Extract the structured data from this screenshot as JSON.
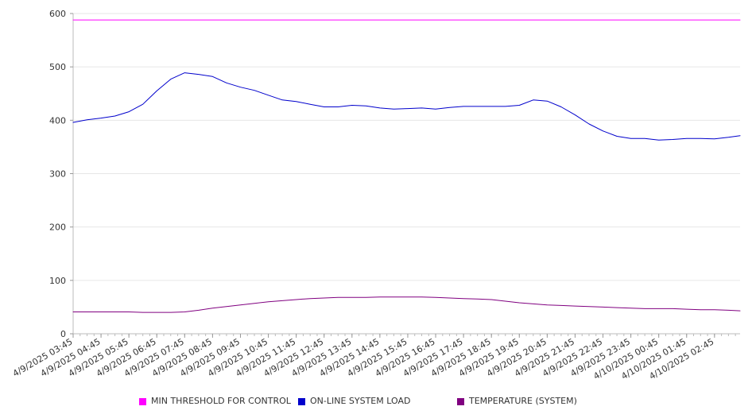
{
  "chart_data": {
    "type": "line",
    "title": "",
    "xlabel": "",
    "ylabel": "",
    "ylim": [
      0,
      600
    ],
    "y_ticks": [
      "0",
      "100",
      "200",
      "300",
      "400",
      "500",
      "600"
    ],
    "x_tick_labels": [
      "4/9/2025 03:45",
      "4/9/2025 04:45",
      "4/9/2025 05:45",
      "4/9/2025 06:45",
      "4/9/2025 07:45",
      "4/9/2025 08:45",
      "4/9/2025 09:45",
      "4/9/2025 10:45",
      "4/9/2025 11:45",
      "4/9/2025 12:45",
      "4/9/2025 13:45",
      "4/9/2025 14:45",
      "4/9/2025 15:45",
      "4/9/2025 16:45",
      "4/9/2025 17:45",
      "4/9/2025 18:45",
      "4/9/2025 19:45",
      "4/9/2025 20:45",
      "4/9/2025 21:45",
      "4/9/2025 22:45",
      "4/9/2025 23:45",
      "4/10/2025 00:45",
      "4/10/2025 01:45",
      "4/10/2025 02:45"
    ],
    "x": [
      "4/9/2025 03:45",
      "4/9/2025 04:15",
      "4/9/2025 04:45",
      "4/9/2025 05:15",
      "4/9/2025 05:45",
      "4/9/2025 06:15",
      "4/9/2025 06:45",
      "4/9/2025 07:15",
      "4/9/2025 07:45",
      "4/9/2025 08:15",
      "4/9/2025 08:45",
      "4/9/2025 09:15",
      "4/9/2025 09:45",
      "4/9/2025 10:15",
      "4/9/2025 10:45",
      "4/9/2025 11:15",
      "4/9/2025 11:45",
      "4/9/2025 12:15",
      "4/9/2025 12:45",
      "4/9/2025 13:15",
      "4/9/2025 13:45",
      "4/9/2025 14:15",
      "4/9/2025 14:45",
      "4/9/2025 15:15",
      "4/9/2025 15:45",
      "4/9/2025 16:15",
      "4/9/2025 16:45",
      "4/9/2025 17:15",
      "4/9/2025 17:45",
      "4/9/2025 18:15",
      "4/9/2025 18:45",
      "4/9/2025 19:15",
      "4/9/2025 19:45",
      "4/9/2025 20:15",
      "4/9/2025 20:45",
      "4/9/2025 21:15",
      "4/9/2025 21:45",
      "4/9/2025 22:15",
      "4/9/2025 22:45",
      "4/9/2025 23:15",
      "4/9/2025 23:45",
      "4/10/2025 00:15",
      "4/10/2025 00:45",
      "4/10/2025 01:15",
      "4/10/2025 01:45",
      "4/10/2025 02:15",
      "4/10/2025 02:45",
      "4/10/2025 03:15",
      "4/10/2025 03:40"
    ],
    "series": [
      {
        "name": "MIN THRESHOLD FOR CONTROL",
        "color": "#ff00ff",
        "values": [
          588,
          588,
          588,
          588,
          588,
          588,
          588,
          588,
          588,
          588,
          588,
          588,
          588,
          588,
          588,
          588,
          588,
          588,
          588,
          588,
          588,
          588,
          588,
          588,
          588,
          588,
          588,
          588,
          588,
          588,
          588,
          588,
          588,
          588,
          588,
          588,
          588,
          588,
          588,
          588,
          588,
          588,
          588,
          588,
          588,
          588,
          588,
          588,
          588
        ]
      },
      {
        "name": "ON-LINE SYSTEM LOAD",
        "color": "#0000cc",
        "values": [
          396,
          401,
          404,
          408,
          416,
          430,
          455,
          477,
          489,
          486,
          482,
          470,
          462,
          456,
          447,
          438,
          435,
          430,
          425,
          425,
          428,
          427,
          423,
          421,
          422,
          423,
          421,
          424,
          426,
          426,
          426,
          426,
          428,
          438,
          436,
          425,
          410,
          393,
          380,
          370,
          366,
          366,
          363,
          364,
          366,
          366,
          365,
          368,
          371
        ]
      },
      {
        "name": "TEMPERATURE (SYSTEM)",
        "color": "#800080",
        "values": [
          41,
          41,
          41,
          41,
          41,
          40,
          40,
          40,
          41,
          44,
          48,
          51,
          54,
          57,
          60,
          62,
          64,
          66,
          67,
          68,
          68,
          68,
          69,
          69,
          69,
          69,
          68,
          67,
          66,
          65,
          64,
          61,
          58,
          56,
          54,
          53,
          52,
          51,
          50,
          49,
          48,
          47,
          47,
          47,
          46,
          45,
          45,
          44,
          43
        ]
      }
    ],
    "legend_position": "bottom",
    "grid": true
  }
}
